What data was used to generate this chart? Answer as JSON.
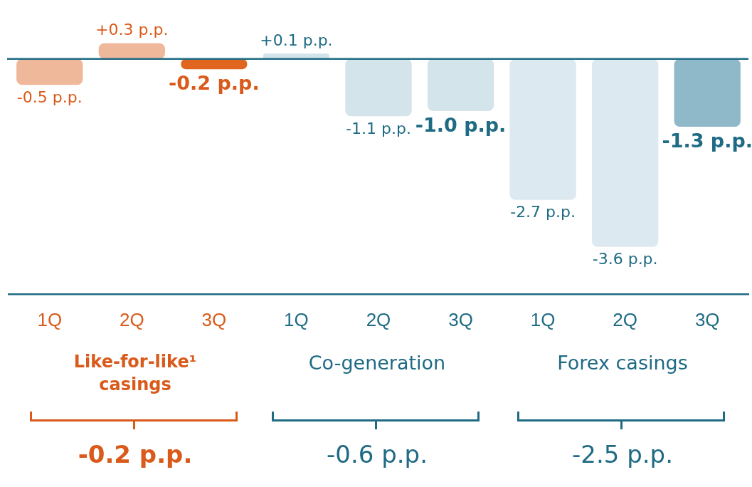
{
  "chart_data": {
    "type": "bar",
    "ref_lines": [
      {
        "axis": "y",
        "value": 0,
        "color": "#1f6b84"
      }
    ],
    "categories": [
      "1Q",
      "2Q",
      "3Q",
      "1Q",
      "2Q",
      "3Q",
      "1Q",
      "2Q",
      "3Q"
    ],
    "values": [
      -0.5,
      0.3,
      -0.2,
      0.1,
      -1.1,
      -1.0,
      -2.7,
      -3.6,
      -1.3
    ],
    "colors": [
      "#f0b89a",
      "#f0b89a",
      "#e0661f",
      "#d3e4ea",
      "#d3e4ea",
      "#d3e4ea",
      "#dde9f0",
      "#dde9f0",
      "#8fb8c9"
    ],
    "value_labels": [
      "-0.5 p.p.",
      "+0.3 p.p.",
      "-0.2 p.p.",
      "+0.1 p.p.",
      "-1.1 p.p.",
      "-1.0 p.p.",
      "-2.7 p.p.",
      "-3.6 p.p.",
      "-1.3 p.p."
    ],
    "annotations": [
      "Like-for-like¹ casings",
      "Co-generation",
      "Forex casings",
      "-0.2 p.p.",
      "-0.6 p.p.",
      "-2.5 p.p."
    ]
  }
}
